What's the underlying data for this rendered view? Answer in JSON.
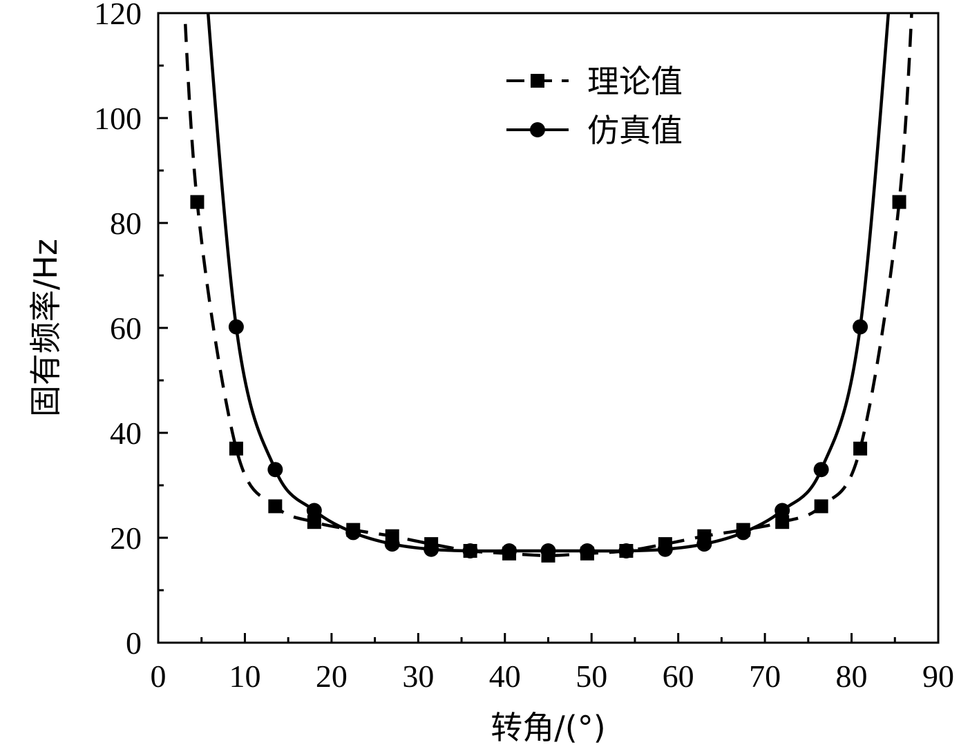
{
  "chart_data": {
    "type": "line",
    "title": "",
    "xlabel": "转角/(°)",
    "ylabel": "固有频率/Hz",
    "xlim": [
      0,
      90
    ],
    "ylim": [
      0,
      120
    ],
    "xticks": [
      0,
      10,
      20,
      30,
      40,
      50,
      60,
      70,
      80,
      90
    ],
    "yticks": [
      0,
      20,
      40,
      60,
      80,
      100,
      120
    ],
    "grid": false,
    "legend_position": "top-center",
    "series": [
      {
        "name": "理论值",
        "line_style": "dashed",
        "marker": "square",
        "color": "#000000",
        "x": [
          4.5,
          9,
          13.5,
          18,
          22.5,
          27,
          31.5,
          36,
          40.5,
          45,
          49.5,
          54,
          58.5,
          63,
          67.5,
          72,
          76.5,
          81,
          85.5
        ],
        "values": [
          84,
          37,
          26,
          23,
          21.5,
          20.3,
          18.8,
          17.5,
          17,
          16.6,
          17,
          17.5,
          18.8,
          20.3,
          21.5,
          23,
          26,
          37,
          84
        ]
      },
      {
        "name": "仿真值",
        "line_style": "solid",
        "marker": "circle",
        "color": "#000000",
        "x": [
          9,
          13.5,
          18,
          22.5,
          27,
          31.5,
          36,
          40.5,
          45,
          49.5,
          54,
          58.5,
          63,
          67.5,
          72,
          76.5,
          81
        ],
        "values": [
          60.2,
          33,
          25.2,
          21,
          18.8,
          17.8,
          17.5,
          17.5,
          17.5,
          17.5,
          17.5,
          17.8,
          18.8,
          21,
          25.2,
          33,
          60.2
        ]
      }
    ]
  }
}
